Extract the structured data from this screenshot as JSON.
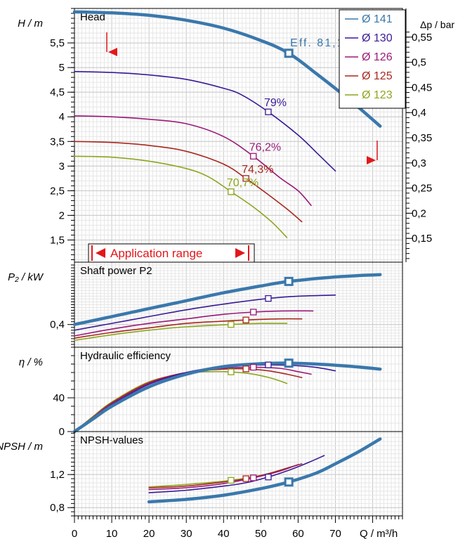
{
  "chart_data": {
    "type": "line",
    "title": "",
    "x_axis": {
      "label": "Q / m³/h",
      "range": [
        0,
        88
      ],
      "ticks": [
        0,
        10,
        20,
        30,
        40,
        50,
        60,
        70
      ]
    },
    "series_names": [
      "Ø 141",
      "Ø 130",
      "Ø 126",
      "Ø 125",
      "Ø 123"
    ],
    "colors": {
      "Ø 141": "#3a78ac",
      "Ø 130": "#3a1a96",
      "Ø 126": "#9a1a7a",
      "Ø 125": "#a8281e",
      "Ø 123": "#8ca61e",
      "marker": "#e3171a"
    },
    "panels": [
      {
        "id": "head",
        "title": "Head",
        "ylabel_left": "H / m",
        "ylabel_right": "Δp / bar",
        "y_range": [
          1.05,
          6.2
        ],
        "y_ticks": [
          1.5,
          2,
          2.5,
          3,
          3.5,
          4,
          4.5,
          5,
          5.5
        ],
        "y_ticks_right": [
          {
            "value": 0.15,
            "label": "0,15"
          },
          {
            "value": 0.2,
            "label": "0,2"
          },
          {
            "value": 0.25,
            "label": "0,25"
          },
          {
            "value": 0.3,
            "label": "0,3"
          },
          {
            "value": 0.35,
            "label": "0,35"
          },
          {
            "value": 0.4,
            "label": "0,4"
          },
          {
            "value": 0.45,
            "label": "0,45"
          },
          {
            "value": 0.5,
            "label": "0,5"
          },
          {
            "value": 0.55,
            "label": "0,55"
          }
        ],
        "series": [
          {
            "name": "Ø 141",
            "points": [
              [
                0,
                6.13
              ],
              [
                10,
                6.11
              ],
              [
                20,
                6.06
              ],
              [
                30,
                5.96
              ],
              [
                40,
                5.8
              ],
              [
                50,
                5.55
              ],
              [
                57.5,
                5.29
              ],
              [
                65,
                4.87
              ],
              [
                75,
                4.27
              ],
              [
                82,
                3.81
              ]
            ],
            "marker": [
              57.5,
              5.29
            ],
            "label": "Eff. 81,1%"
          },
          {
            "name": "Ø 130",
            "points": [
              [
                0,
                4.92
              ],
              [
                10,
                4.9
              ],
              [
                20,
                4.85
              ],
              [
                30,
                4.76
              ],
              [
                40,
                4.58
              ],
              [
                45,
                4.44
              ],
              [
                52,
                4.1
              ],
              [
                60,
                3.63
              ],
              [
                65,
                3.27
              ],
              [
                70,
                2.9
              ]
            ],
            "marker": [
              52,
              4.1
            ],
            "label": "79%"
          },
          {
            "name": "Ø 126",
            "points": [
              [
                0,
                4.02
              ],
              [
                10,
                4.0
              ],
              [
                20,
                3.95
              ],
              [
                30,
                3.86
              ],
              [
                40,
                3.6
              ],
              [
                48,
                3.2
              ],
              [
                55,
                2.77
              ],
              [
                60,
                2.5
              ],
              [
                63.5,
                2.2
              ]
            ],
            "marker": [
              48,
              3.2
            ],
            "label": "76,2%"
          },
          {
            "name": "Ø 125",
            "points": [
              [
                0,
                3.5
              ],
              [
                10,
                3.48
              ],
              [
                20,
                3.42
              ],
              [
                30,
                3.3
              ],
              [
                40,
                3.04
              ],
              [
                46,
                2.75
              ],
              [
                52,
                2.42
              ],
              [
                57,
                2.13
              ],
              [
                61,
                1.87
              ]
            ],
            "marker": [
              46,
              2.75
            ],
            "label": "74,3%"
          },
          {
            "name": "Ø 123",
            "points": [
              [
                0,
                3.2
              ],
              [
                10,
                3.18
              ],
              [
                20,
                3.1
              ],
              [
                30,
                2.95
              ],
              [
                36,
                2.78
              ],
              [
                42,
                2.48
              ],
              [
                48,
                2.17
              ],
              [
                53,
                1.86
              ],
              [
                57,
                1.55
              ]
            ],
            "marker": [
              42,
              2.48
            ],
            "label": "70,7%"
          }
        ],
        "annotations": {
          "application_range": "Application range",
          "range_start": 9,
          "range_end": 80
        }
      },
      {
        "id": "power",
        "title": "Shaft power P2",
        "ylabel_left": "P₂ / kW",
        "y_range": [
          0.2,
          0.95
        ],
        "y_ticks": [
          0.4
        ],
        "y_tick_labels": [
          "0,4"
        ],
        "series": [
          {
            "name": "Ø 141",
            "points": [
              [
                0,
                0.4
              ],
              [
                10,
                0.47
              ],
              [
                20,
                0.54
              ],
              [
                30,
                0.61
              ],
              [
                40,
                0.68
              ],
              [
                50,
                0.74
              ],
              [
                57.5,
                0.78
              ],
              [
                70,
                0.82
              ],
              [
                82,
                0.84
              ]
            ],
            "marker": [
              57.5,
              0.78
            ]
          },
          {
            "name": "Ø 130",
            "points": [
              [
                0,
                0.35
              ],
              [
                10,
                0.41
              ],
              [
                20,
                0.47
              ],
              [
                30,
                0.53
              ],
              [
                40,
                0.58
              ],
              [
                52,
                0.63
              ],
              [
                60,
                0.65
              ],
              [
                70,
                0.66
              ]
            ],
            "marker": [
              52,
              0.63
            ]
          },
          {
            "name": "Ø 126",
            "points": [
              [
                0,
                0.3
              ],
              [
                10,
                0.36
              ],
              [
                20,
                0.41
              ],
              [
                30,
                0.45
              ],
              [
                40,
                0.49
              ],
              [
                48,
                0.51
              ],
              [
                56,
                0.52
              ],
              [
                64,
                0.52
              ]
            ],
            "marker": [
              48,
              0.51
            ]
          },
          {
            "name": "Ø 125",
            "points": [
              [
                0,
                0.28
              ],
              [
                10,
                0.33
              ],
              [
                20,
                0.37
              ],
              [
                30,
                0.41
              ],
              [
                40,
                0.43
              ],
              [
                46,
                0.44
              ],
              [
                55,
                0.45
              ],
              [
                61,
                0.45
              ]
            ],
            "marker": [
              46,
              0.44
            ]
          },
          {
            "name": "Ø 123",
            "points": [
              [
                0,
                0.26
              ],
              [
                10,
                0.31
              ],
              [
                20,
                0.35
              ],
              [
                30,
                0.38
              ],
              [
                42,
                0.4
              ],
              [
                50,
                0.41
              ],
              [
                57,
                0.41
              ]
            ],
            "marker": [
              42,
              0.4
            ]
          }
        ]
      },
      {
        "id": "efficiency",
        "title": "Hydraulic efficiency",
        "ylabel_left": "η / %",
        "y_range": [
          0,
          100
        ],
        "y_ticks": [
          0,
          40
        ],
        "y_tick_labels": [
          "0",
          "40"
        ],
        "series": [
          {
            "name": "Ø 141",
            "points": [
              [
                0,
                0
              ],
              [
                5,
                15
              ],
              [
                10,
                30
              ],
              [
                20,
                53
              ],
              [
                30,
                68
              ],
              [
                40,
                77
              ],
              [
                50,
                80.5
              ],
              [
                57.5,
                81.1
              ],
              [
                65,
                80
              ],
              [
                75,
                77
              ],
              [
                82,
                74
              ]
            ],
            "marker": [
              57.5,
              81.1
            ]
          },
          {
            "name": "Ø 130",
            "points": [
              [
                0,
                0
              ],
              [
                5,
                16
              ],
              [
                10,
                32
              ],
              [
                20,
                56
              ],
              [
                30,
                70
              ],
              [
                40,
                77
              ],
              [
                52,
                79
              ],
              [
                60,
                78
              ],
              [
                65,
                76
              ],
              [
                70,
                72
              ]
            ],
            "marker": [
              52,
              79
            ]
          },
          {
            "name": "Ø 126",
            "points": [
              [
                0,
                0
              ],
              [
                5,
                17
              ],
              [
                10,
                33
              ],
              [
                20,
                57
              ],
              [
                30,
                70
              ],
              [
                40,
                75
              ],
              [
                48,
                76.2
              ],
              [
                55,
                75
              ],
              [
                60,
                71
              ],
              [
                63.5,
                68
              ]
            ],
            "marker": [
              48,
              76.2
            ]
          },
          {
            "name": "Ø 125",
            "points": [
              [
                0,
                0
              ],
              [
                5,
                17
              ],
              [
                10,
                34
              ],
              [
                20,
                58
              ],
              [
                30,
                70
              ],
              [
                40,
                74
              ],
              [
                46,
                74.3
              ],
              [
                52,
                72
              ],
              [
                57,
                68
              ],
              [
                61,
                64
              ]
            ],
            "marker": [
              46,
              74.3
            ]
          },
          {
            "name": "Ø 123",
            "points": [
              [
                0,
                0
              ],
              [
                5,
                18
              ],
              [
                10,
                35
              ],
              [
                20,
                59
              ],
              [
                30,
                69
              ],
              [
                36,
                71
              ],
              [
                42,
                70.7
              ],
              [
                48,
                68
              ],
              [
                53,
                63
              ],
              [
                57,
                57
              ]
            ],
            "marker": [
              42,
              70.7
            ]
          }
        ]
      },
      {
        "id": "npsh",
        "title": "NPSH-values",
        "ylabel_left": "NPSH / m",
        "y_range": [
          0.7,
          1.72
        ],
        "y_ticks": [
          0.8,
          1.2
        ],
        "y_tick_labels": [
          "0,8",
          "1,2"
        ],
        "series": [
          {
            "name": "Ø 141",
            "points": [
              [
                20,
                0.87
              ],
              [
                30,
                0.9
              ],
              [
                40,
                0.95
              ],
              [
                50,
                1.03
              ],
              [
                57.5,
                1.11
              ],
              [
                65,
                1.22
              ],
              [
                70,
                1.33
              ],
              [
                76,
                1.47
              ],
              [
                82,
                1.63
              ]
            ],
            "marker": [
              57.5,
              1.11
            ]
          },
          {
            "name": "Ø 130",
            "points": [
              [
                20,
                0.98
              ],
              [
                30,
                1.01
              ],
              [
                40,
                1.06
              ],
              [
                46,
                1.1
              ],
              [
                52,
                1.17
              ],
              [
                58,
                1.26
              ],
              [
                63,
                1.35
              ],
              [
                67,
                1.43
              ]
            ],
            "marker": [
              52,
              1.17
            ]
          },
          {
            "name": "Ø 126",
            "points": [
              [
                20,
                1.02
              ],
              [
                30,
                1.04
              ],
              [
                40,
                1.09
              ],
              [
                48,
                1.16
              ],
              [
                55,
                1.24
              ],
              [
                60,
                1.32
              ]
            ],
            "marker": [
              48,
              1.16
            ]
          },
          {
            "name": "Ø 125",
            "points": [
              [
                20,
                1.04
              ],
              [
                30,
                1.06
              ],
              [
                40,
                1.11
              ],
              [
                46,
                1.15
              ],
              [
                52,
                1.21
              ],
              [
                58,
                1.29
              ],
              [
                61,
                1.33
              ]
            ],
            "marker": [
              46,
              1.15
            ]
          },
          {
            "name": "Ø 123",
            "points": [
              [
                20,
                1.05
              ],
              [
                30,
                1.08
              ],
              [
                42,
                1.13
              ],
              [
                50,
                1.19
              ],
              [
                55,
                1.25
              ],
              [
                60,
                1.32
              ]
            ],
            "marker": [
              42,
              1.13
            ]
          }
        ]
      }
    ]
  }
}
